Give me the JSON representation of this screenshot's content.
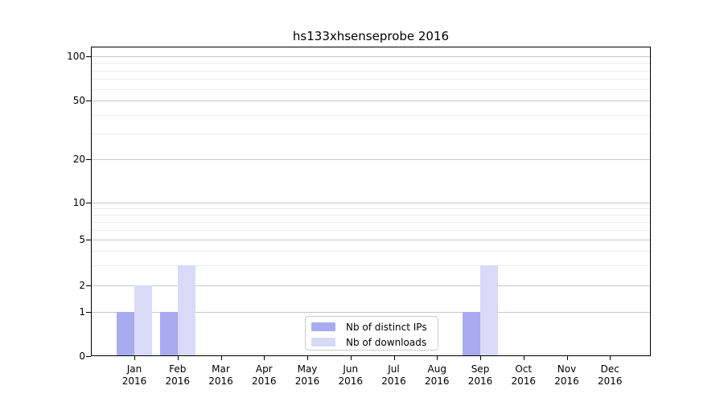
{
  "title": "hs133xhsenseprobe 2016",
  "chart_data": {
    "type": "bar",
    "title": "hs133xhsenseprobe 2016",
    "categories": [
      "Jan 2016",
      "Feb 2016",
      "Mar 2016",
      "Apr 2016",
      "May 2016",
      "Jun 2016",
      "Jul 2016",
      "Aug 2016",
      "Sep 2016",
      "Oct 2016",
      "Nov 2016",
      "Dec 2016"
    ],
    "series": [
      {
        "name": "Nb of distinct IPs",
        "color": "#aaaaf0",
        "values": [
          1,
          1,
          0,
          0,
          0,
          0,
          0,
          0,
          1,
          0,
          0,
          0
        ]
      },
      {
        "name": "Nb of downloads",
        "color": "#d9d9f8",
        "values": [
          2,
          3,
          0,
          0,
          0,
          0,
          0,
          0,
          3,
          0,
          0,
          0
        ]
      }
    ],
    "yticks": [
      0,
      1,
      2,
      5,
      10,
      20,
      50,
      100
    ],
    "y_minor_gridlines": [
      3,
      4,
      6,
      7,
      8,
      9,
      30,
      40,
      60,
      70,
      80,
      90
    ],
    "yscale": "log-like (linear 0-1, logarithmic above)",
    "ylim": [
      0,
      116
    ],
    "xlabel": "",
    "ylabel": "",
    "grid": "horizontal",
    "legend_position": "lower center"
  },
  "colors": {
    "bar_distinct_ips": "#aaaaf0",
    "bar_downloads": "#d9d9f8",
    "grid_major": "#c9c9c9",
    "grid_minor": "#ececec",
    "axis": "#000000",
    "legend_border": "#cccccc",
    "background": "#ffffff"
  }
}
